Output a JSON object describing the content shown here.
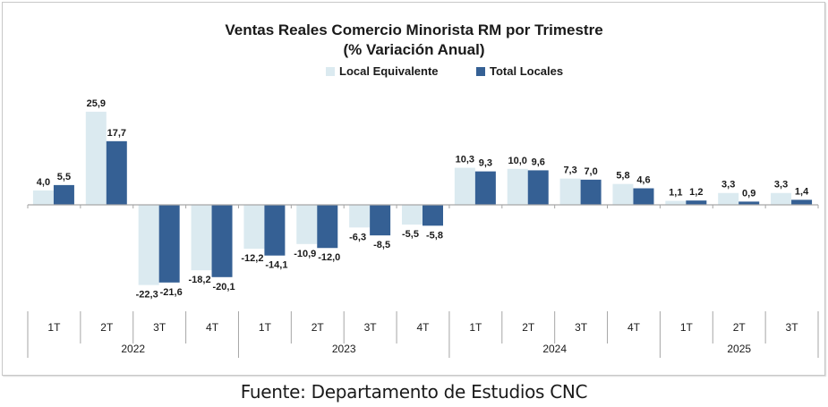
{
  "chart_data": {
    "type": "bar",
    "title": "Ventas Reales Comercio Minorista RM por Trimestre",
    "subtitle": "(% Variación Anual)",
    "xlabel": "",
    "ylabel": "",
    "ylim": [
      -25,
      28
    ],
    "grid": false,
    "legend_position": "top",
    "categories": [
      "1T",
      "2T",
      "3T",
      "4T",
      "1T",
      "2T",
      "3T",
      "4T",
      "1T",
      "2T",
      "3T",
      "4T",
      "1T",
      "2T",
      "3T"
    ],
    "groups": [
      {
        "label": "2022",
        "count": 4
      },
      {
        "label": "2023",
        "count": 4
      },
      {
        "label": "2024",
        "count": 4
      },
      {
        "label": "2025",
        "count": 3
      }
    ],
    "series": [
      {
        "name": "Local Equivalente",
        "color": "#dbeaf0",
        "values": [
          4.0,
          25.9,
          -22.3,
          -18.2,
          -12.2,
          -10.9,
          -6.3,
          -5.5,
          10.3,
          10.0,
          7.3,
          5.8,
          1.1,
          3.3,
          3.3
        ],
        "labels": [
          "4,0",
          "25,9",
          "-22,3",
          "-18,2",
          "-12,2",
          "-10,9",
          "-6,3",
          "-5,5",
          "10,3",
          "10,0",
          "7,3",
          "5,8",
          "1,1",
          "3,3",
          "3,3"
        ]
      },
      {
        "name": "Total Locales",
        "color": "#356094",
        "values": [
          5.5,
          17.7,
          -21.6,
          -20.1,
          -14.1,
          -12.0,
          -8.5,
          -5.8,
          9.3,
          9.6,
          7.0,
          4.6,
          1.2,
          0.9,
          1.4
        ],
        "labels": [
          "5,5",
          "17,7",
          "-21,6",
          "-20,1",
          "-14,1",
          "-12,0",
          "-8,5",
          "-5,8",
          "9,3",
          "9,6",
          "7,0",
          "4,6",
          "1,2",
          "0,9",
          "1,4"
        ]
      }
    ]
  },
  "source": "Fuente: Departamento de Estudios CNC"
}
